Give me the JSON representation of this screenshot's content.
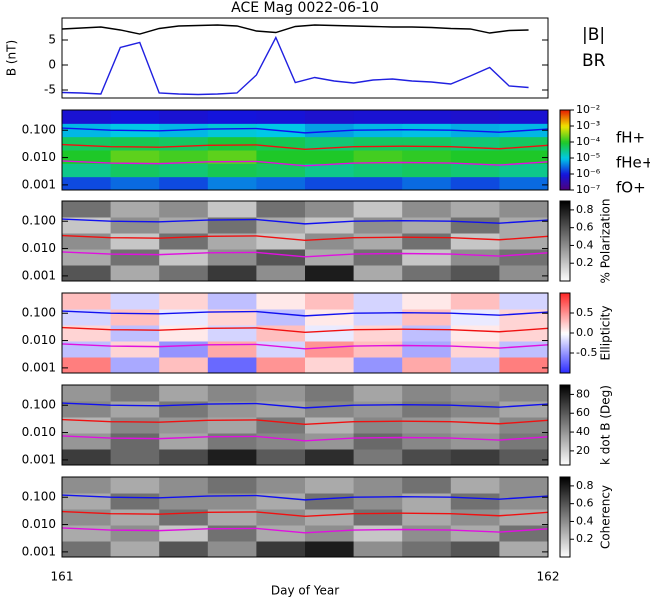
{
  "chart_data": [
    {
      "type": "line",
      "title": "ACE Mag 0022-06-10",
      "ylabel": "B (nT)",
      "xlim": [
        161,
        162
      ],
      "ylim": [
        -6.6,
        9.4
      ],
      "yticks": [
        -5,
        0,
        5
      ],
      "x": [
        161,
        161.04,
        161.08,
        161.12,
        161.16,
        161.2,
        161.24,
        161.28,
        161.32,
        161.36,
        161.4,
        161.44,
        161.48,
        161.52,
        161.56,
        161.6,
        161.64,
        161.68,
        161.72,
        161.76,
        161.8,
        161.84,
        161.88,
        161.92,
        161.96
      ],
      "series": [
        {
          "name": "|B|",
          "color": "#000000",
          "values": [
            7.2,
            7.4,
            7.6,
            7.0,
            6.2,
            7.3,
            7.8,
            7.9,
            8.0,
            7.8,
            6.8,
            6.5,
            7.7,
            8.0,
            7.9,
            7.8,
            7.7,
            7.6,
            7.6,
            7.5,
            7.3,
            7.2,
            6.4,
            6.9,
            7.0
          ]
        },
        {
          "name": "BR",
          "color": "#2020e0",
          "values": [
            -5.5,
            -5.6,
            -5.8,
            3.5,
            4.5,
            -5.6,
            -5.8,
            -5.9,
            -5.8,
            -5.6,
            -2,
            5.5,
            -3.5,
            -2.5,
            -3.2,
            -3.6,
            -3.0,
            -2.8,
            -3.2,
            -3.4,
            -3.8,
            -2.2,
            -0.5,
            -4.2,
            -4.5
          ]
        }
      ]
    },
    {
      "type": "heatmap",
      "colormap": "rainbow",
      "log_y": true,
      "log_z": true,
      "xlim": [
        161,
        162
      ],
      "ylim": [
        0.00065,
        0.55
      ],
      "yticks": [
        {
          "value": 0.1,
          "label": "0.100"
        },
        {
          "value": 0.01,
          "label": "0.010"
        },
        0.001
      ],
      "zlim": [
        1e-07,
        0.01
      ],
      "zticks": [
        {
          "value": 0.01,
          "label": "10⁻²"
        },
        {
          "value": 0.001,
          "label": "10⁻³"
        },
        {
          "value": 0.0001,
          "label": "10⁻⁴"
        },
        {
          "value": 1e-05,
          "label": "10⁻⁵"
        },
        {
          "value": 1e-06,
          "label": "10⁻⁶"
        },
        {
          "value": 1e-07,
          "label": "10⁻⁷"
        }
      ],
      "z": [
        [
          2e-06,
          3e-06,
          2e-06,
          4e-06,
          3e-06,
          2e-06,
          2e-06,
          3e-06,
          2e-06,
          3e-06
        ],
        [
          3e-05,
          5e-05,
          4e-05,
          6e-05,
          5e-05,
          3e-05,
          4e-05,
          5e-05,
          4e-05,
          3e-05
        ],
        [
          0.0001,
          0.0002,
          0.00015,
          0.0002,
          0.0001,
          0.0001,
          0.00015,
          0.00012,
          0.0001,
          0.0001
        ],
        [
          5e-05,
          6e-05,
          5e-05,
          8e-05,
          6e-05,
          4e-05,
          5e-05,
          5e-05,
          4e-05,
          5e-05
        ],
        [
          8e-06,
          1e-05,
          8e-06,
          1.2e-05,
          1e-05,
          6e-06,
          8e-06,
          9e-06,
          7e-06,
          8e-06
        ],
        [
          8e-07,
          1e-06,
          8e-07,
          1e-06,
          9e-07,
          7e-07,
          8e-07,
          8e-07,
          7e-07,
          8e-07
        ]
      ],
      "x": [
        161,
        161.1,
        161.2,
        161.3,
        161.4,
        161.5,
        161.6,
        161.7,
        161.8,
        161.9,
        162
      ],
      "series": [
        {
          "name": "fH+",
          "color": "#1010f0",
          "values": [
            0.12,
            0.1,
            0.095,
            0.11,
            0.115,
            0.08,
            0.1,
            0.105,
            0.1,
            0.085,
            0.11
          ]
        },
        {
          "name": "fHe+",
          "color": "#f01010",
          "values": [
            0.03,
            0.025,
            0.024,
            0.028,
            0.029,
            0.02,
            0.025,
            0.026,
            0.025,
            0.021,
            0.028
          ]
        },
        {
          "name": "fO+",
          "color": "#e010e0",
          "values": [
            0.0075,
            0.0063,
            0.006,
            0.007,
            0.0072,
            0.005,
            0.0063,
            0.0066,
            0.0063,
            0.0053,
            0.007
          ]
        }
      ]
    },
    {
      "type": "heatmap",
      "colormap": "gray",
      "log_y": true,
      "xlim": [
        161,
        162
      ],
      "ylim": [
        0.00065,
        0.55
      ],
      "yticks": [
        {
          "value": 0.1,
          "label": "0.100"
        },
        {
          "value": 0.01,
          "label": "0.010"
        },
        0.001
      ],
      "zlabel": "% Polarization",
      "zlim": [
        0,
        0.9
      ],
      "zticks": [
        0.8,
        0.6,
        0.4,
        0.2
      ],
      "z": [
        [
          0.6,
          0.3,
          0.5,
          0.7,
          0.4,
          0.8,
          0.3,
          0.5,
          0.6,
          0.4
        ],
        [
          0.3,
          0.5,
          0.2,
          0.4,
          0.6,
          0.3,
          0.5,
          0.2,
          0.4,
          0.5
        ],
        [
          0.4,
          0.2,
          0.5,
          0.3,
          0.2,
          0.4,
          0.3,
          0.5,
          0.2,
          0.3
        ],
        [
          0.2,
          0.4,
          0.3,
          0.5,
          0.3,
          0.2,
          0.4,
          0.3,
          0.5,
          0.3
        ],
        [
          0.5,
          0.3,
          0.4,
          0.2,
          0.5,
          0.4,
          0.2,
          0.4,
          0.3,
          0.4
        ]
      ]
    },
    {
      "type": "heatmap",
      "colormap": "bwr",
      "log_y": true,
      "xlim": [
        161,
        162
      ],
      "ylim": [
        0.00065,
        0.55
      ],
      "yticks": [
        {
          "value": 0.1,
          "label": "0.100"
        },
        {
          "value": 0.01,
          "label": "0.010"
        },
        0.001
      ],
      "zlabel": "Ellipticity",
      "zlim": [
        -1,
        1
      ],
      "zticks": [
        0.5,
        {
          "value": 0,
          "label": "0.0"
        },
        -0.5
      ],
      "z": [
        [
          0.6,
          -0.4,
          0.3,
          -0.7,
          0.5,
          0.2,
          -0.5,
          0.4,
          -0.3,
          0.6
        ],
        [
          -0.3,
          0.2,
          -0.5,
          0.4,
          -0.2,
          0.5,
          0.3,
          -0.4,
          0.2,
          -0.3
        ],
        [
          0.2,
          -0.3,
          0.1,
          -0.2,
          0.3,
          -0.1,
          0.2,
          -0.3,
          0.1,
          0.2
        ],
        [
          -0.2,
          0.3,
          -0.1,
          0.2,
          -0.3,
          0.1,
          -0.2,
          0.3,
          -0.1,
          0.2
        ],
        [
          0.3,
          -0.2,
          0.2,
          -0.3,
          0.1,
          0.3,
          -0.2,
          0.1,
          0.3,
          -0.2
        ]
      ]
    },
    {
      "type": "heatmap",
      "colormap": "gray",
      "log_y": true,
      "xlim": [
        161,
        162
      ],
      "ylim": [
        0.00065,
        0.55
      ],
      "yticks": [
        {
          "value": 0.1,
          "label": "0.100"
        },
        {
          "value": 0.01,
          "label": "0.010"
        },
        0.001
      ],
      "zlabel": "k dot B (Deg)",
      "zlim": [
        5,
        90
      ],
      "zticks": [
        80,
        60,
        40,
        20
      ],
      "z": [
        [
          70,
          55,
          65,
          80,
          60,
          75,
          50,
          65,
          70,
          60
        ],
        [
          40,
          55,
          35,
          50,
          45,
          40,
          55,
          45,
          40,
          50
        ],
        [
          30,
          45,
          40,
          35,
          50,
          30,
          45,
          40,
          35,
          45
        ],
        [
          45,
          35,
          50,
          40,
          35,
          45,
          40,
          50,
          45,
          35
        ],
        [
          40,
          50,
          35,
          45,
          40,
          50,
          35,
          45,
          40,
          45
        ]
      ]
    },
    {
      "type": "heatmap",
      "colormap": "gray",
      "log_y": true,
      "xlim": [
        161,
        162
      ],
      "ylim": [
        0.00065,
        0.55
      ],
      "yticks": [
        {
          "value": 0.1,
          "label": "0.100"
        },
        {
          "value": 0.01,
          "label": "0.010"
        },
        0.001
      ],
      "zlabel": "Coherency",
      "zlim": [
        0,
        0.9
      ],
      "zticks": [
        0.8,
        0.6,
        0.4,
        0.2
      ],
      "z": [
        [
          0.5,
          0.3,
          0.6,
          0.4,
          0.7,
          0.8,
          0.4,
          0.5,
          0.6,
          0.3
        ],
        [
          0.3,
          0.4,
          0.2,
          0.5,
          0.3,
          0.4,
          0.2,
          0.4,
          0.3,
          0.5
        ],
        [
          0.4,
          0.3,
          0.5,
          0.3,
          0.4,
          0.3,
          0.5,
          0.3,
          0.4,
          0.3
        ],
        [
          0.3,
          0.5,
          0.4,
          0.4,
          0.3,
          0.5,
          0.4,
          0.3,
          0.5,
          0.4
        ],
        [
          0.4,
          0.3,
          0.4,
          0.5,
          0.4,
          0.3,
          0.4,
          0.5,
          0.3,
          0.4
        ]
      ],
      "xticks": [
        161,
        162
      ],
      "xlabel": "Day of Year"
    }
  ]
}
